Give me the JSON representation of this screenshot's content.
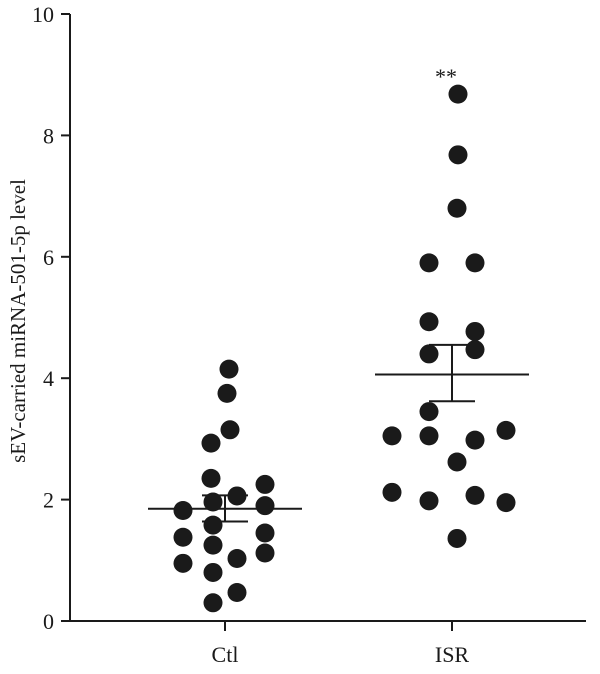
{
  "chart_data": {
    "type": "scatter",
    "ylabel": "sEV-carried miRNA-501-5p level",
    "xlabel": "",
    "ylim": [
      0,
      10
    ],
    "yticks": [
      "0",
      "2",
      "4",
      "6",
      "8",
      "10"
    ],
    "categories": [
      "Ctl",
      "ISR"
    ],
    "grid": false,
    "colors": {
      "point": "#1a1a1a",
      "axis": "#1a1a1a"
    },
    "groups": [
      {
        "category": "Ctl",
        "mean": 1.85,
        "sem_low": 1.64,
        "sem_high": 2.07,
        "points": [
          {
            "dx": 0.2,
            "y": 4.15
          },
          {
            "dx": 0.1,
            "y": 3.75
          },
          {
            "dx": 0.25,
            "y": 3.15
          },
          {
            "dx": -0.7,
            "y": 2.93
          },
          {
            "dx": -0.7,
            "y": 2.35
          },
          {
            "dx": 2.0,
            "y": 2.25
          },
          {
            "dx": 0.6,
            "y": 2.06
          },
          {
            "dx": -0.6,
            "y": 1.96
          },
          {
            "dx": 2.0,
            "y": 1.9
          },
          {
            "dx": -2.1,
            "y": 1.82
          },
          {
            "dx": -0.6,
            "y": 1.58
          },
          {
            "dx": 2.0,
            "y": 1.45
          },
          {
            "dx": -2.1,
            "y": 1.38
          },
          {
            "dx": -0.6,
            "y": 1.25
          },
          {
            "dx": 2.0,
            "y": 1.12
          },
          {
            "dx": 0.6,
            "y": 1.03
          },
          {
            "dx": -2.1,
            "y": 0.95
          },
          {
            "dx": -0.6,
            "y": 0.8
          },
          {
            "dx": 0.6,
            "y": 0.47
          },
          {
            "dx": -0.6,
            "y": 0.3
          }
        ]
      },
      {
        "category": "ISR",
        "mean": 4.06,
        "sem_low": 3.62,
        "sem_high": 4.55,
        "annotation": "**",
        "points": [
          {
            "dx": 0.3,
            "y": 8.68
          },
          {
            "dx": 0.3,
            "y": 7.68
          },
          {
            "dx": 0.25,
            "y": 6.8
          },
          {
            "dx": -1.15,
            "y": 5.9
          },
          {
            "dx": 1.15,
            "y": 5.9
          },
          {
            "dx": -1.15,
            "y": 4.93
          },
          {
            "dx": 1.15,
            "y": 4.77
          },
          {
            "dx": 1.15,
            "y": 4.47
          },
          {
            "dx": -1.15,
            "y": 4.4
          },
          {
            "dx": -1.15,
            "y": 3.45
          },
          {
            "dx": 2.7,
            "y": 3.14
          },
          {
            "dx": -3.0,
            "y": 3.05
          },
          {
            "dx": -1.15,
            "y": 3.05
          },
          {
            "dx": 1.15,
            "y": 2.98
          },
          {
            "dx": 0.25,
            "y": 2.62
          },
          {
            "dx": -3.0,
            "y": 2.12
          },
          {
            "dx": 1.15,
            "y": 2.07
          },
          {
            "dx": -1.15,
            "y": 1.98
          },
          {
            "dx": 2.7,
            "y": 1.95
          },
          {
            "dx": 0.25,
            "y": 1.36
          }
        ]
      }
    ]
  }
}
